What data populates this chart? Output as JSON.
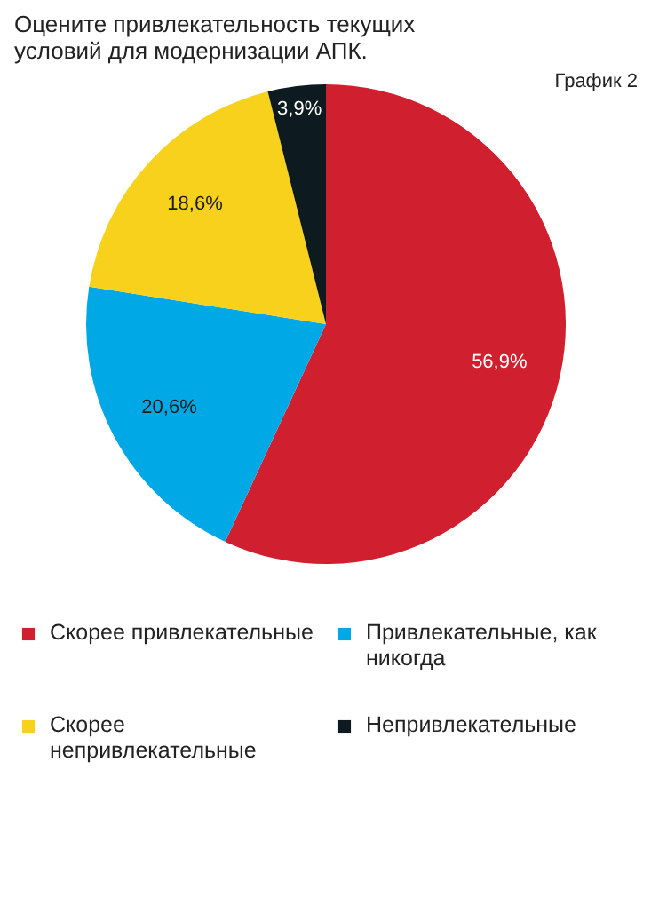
{
  "chart_data": {
    "type": "pie",
    "title": "Оцените привлекательность текущих условий для модернизации АПК.",
    "annotations": [
      "График 2"
    ],
    "categories": [
      "Скорее привлекательные",
      "Привлекательные, как никогда",
      "Скорее непривлекательные",
      "Непривлекательные"
    ],
    "values": [
      56.9,
      20.6,
      18.6,
      3.9
    ],
    "colors": [
      "#d0202f",
      "#00a9e6",
      "#f7d11b",
      "#0d1a20"
    ],
    "value_labels": [
      "56,9%",
      "20,6%",
      "18,6%",
      "3,9%"
    ],
    "legend": "bottom"
  }
}
